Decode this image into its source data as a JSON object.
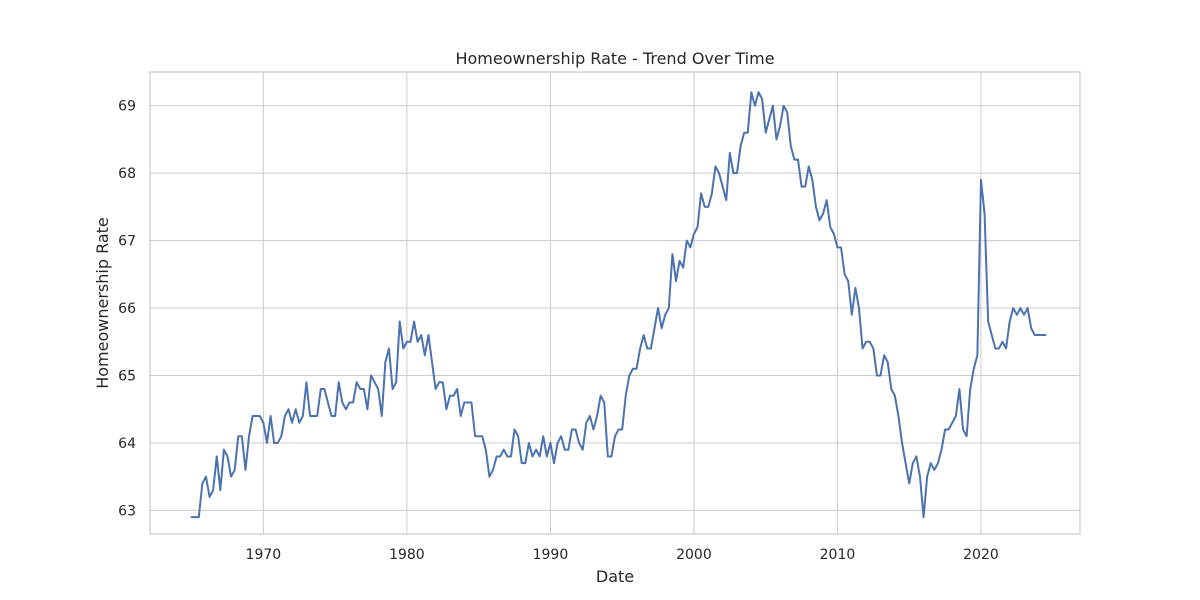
{
  "chart_data": {
    "type": "line",
    "title": "Homeownership Rate - Trend Over Time",
    "xlabel": "Date",
    "ylabel": "Homeownership Rate",
    "xlim": [
      1962.1,
      2026.9
    ],
    "ylim": [
      62.65,
      69.5
    ],
    "x_ticks": [
      1970,
      1980,
      1990,
      2000,
      2010,
      2020
    ],
    "y_ticks": [
      63,
      64,
      65,
      66,
      67,
      68,
      69
    ],
    "grid": true,
    "line_color": "#4c72b0",
    "series": [
      {
        "x": [
          1965.0,
          1965.25,
          1965.5,
          1965.75,
          1966.0,
          1966.25,
          1966.5,
          1966.75,
          1967.0,
          1967.25,
          1967.5,
          1967.75,
          1968.0,
          1968.25,
          1968.5,
          1968.75,
          1969.0,
          1969.25,
          1969.5,
          1969.75,
          1970.0,
          1970.25,
          1970.5,
          1970.75,
          1971.0,
          1971.25,
          1971.5,
          1971.75,
          1972.0,
          1972.25,
          1972.5,
          1972.75,
          1973.0,
          1973.25,
          1973.5,
          1973.75,
          1974.0,
          1974.25,
          1974.5,
          1974.75,
          1975.0,
          1975.25,
          1975.5,
          1975.75,
          1976.0,
          1976.25,
          1976.5,
          1976.75,
          1977.0,
          1977.25,
          1977.5,
          1977.75,
          1978.0,
          1978.25,
          1978.5,
          1978.75,
          1979.0,
          1979.25,
          1979.5,
          1979.75,
          1980.0,
          1980.25,
          1980.5,
          1980.75,
          1981.0,
          1981.25,
          1981.5,
          1981.75,
          1982.0,
          1982.25,
          1982.5,
          1982.75,
          1983.0,
          1983.25,
          1983.5,
          1983.75,
          1984.0,
          1984.25,
          1984.5,
          1984.75,
          1985.0,
          1985.25,
          1985.5,
          1985.75,
          1986.0,
          1986.25,
          1986.5,
          1986.75,
          1987.0,
          1987.25,
          1987.5,
          1987.75,
          1988.0,
          1988.25,
          1988.5,
          1988.75,
          1989.0,
          1989.25,
          1989.5,
          1989.75,
          1990.0,
          1990.25,
          1990.5,
          1990.75,
          1991.0,
          1991.25,
          1991.5,
          1991.75,
          1992.0,
          1992.25,
          1992.5,
          1992.75,
          1993.0,
          1993.25,
          1993.5,
          1993.75,
          1994.0,
          1994.25,
          1994.5,
          1994.75,
          1995.0,
          1995.25,
          1995.5,
          1995.75,
          1996.0,
          1996.25,
          1996.5,
          1996.75,
          1997.0,
          1997.25,
          1997.5,
          1997.75,
          1998.0,
          1998.25,
          1998.5,
          1998.75,
          1999.0,
          1999.25,
          1999.5,
          1999.75,
          2000.0,
          2000.25,
          2000.5,
          2000.75,
          2001.0,
          2001.25,
          2001.5,
          2001.75,
          2002.0,
          2002.25,
          2002.5,
          2002.75,
          2003.0,
          2003.25,
          2003.5,
          2003.75,
          2004.0,
          2004.25,
          2004.5,
          2004.75,
          2005.0,
          2005.25,
          2005.5,
          2005.75,
          2006.0,
          2006.25,
          2006.5,
          2006.75,
          2007.0,
          2007.25,
          2007.5,
          2007.75,
          2008.0,
          2008.25,
          2008.5,
          2008.75,
          2009.0,
          2009.25,
          2009.5,
          2009.75,
          2010.0,
          2010.25,
          2010.5,
          2010.75,
          2011.0,
          2011.25,
          2011.5,
          2011.75,
          2012.0,
          2012.25,
          2012.5,
          2012.75,
          2013.0,
          2013.25,
          2013.5,
          2013.75,
          2014.0,
          2014.25,
          2014.5,
          2014.75,
          2015.0,
          2015.25,
          2015.5,
          2015.75,
          2016.0,
          2016.25,
          2016.5,
          2016.75,
          2017.0,
          2017.25,
          2017.5,
          2017.75,
          2018.0,
          2018.25,
          2018.5,
          2018.75,
          2019.0,
          2019.25,
          2019.5,
          2019.75,
          2020.0,
          2020.25,
          2020.5,
          2020.75,
          2021.0,
          2021.25,
          2021.5,
          2021.75,
          2022.0,
          2022.25,
          2022.5,
          2022.75,
          2023.0,
          2023.25,
          2023.5,
          2023.75,
          2024.0,
          2024.25,
          2024.5
        ],
        "values": [
          62.9,
          62.9,
          62.9,
          63.4,
          63.5,
          63.2,
          63.3,
          63.8,
          63.3,
          63.9,
          63.8,
          63.5,
          63.6,
          64.1,
          64.1,
          63.6,
          64.1,
          64.4,
          64.4,
          64.4,
          64.3,
          64.0,
          64.4,
          64.0,
          64.0,
          64.1,
          64.4,
          64.5,
          64.3,
          64.5,
          64.3,
          64.4,
          64.9,
          64.4,
          64.4,
          64.4,
          64.8,
          64.8,
          64.6,
          64.4,
          64.4,
          64.9,
          64.6,
          64.5,
          64.6,
          64.6,
          64.9,
          64.8,
          64.8,
          64.5,
          65.0,
          64.9,
          64.8,
          64.4,
          65.2,
          65.4,
          64.8,
          64.9,
          65.8,
          65.4,
          65.5,
          65.5,
          65.8,
          65.5,
          65.6,
          65.3,
          65.6,
          65.2,
          64.8,
          64.9,
          64.9,
          64.5,
          64.7,
          64.7,
          64.8,
          64.4,
          64.6,
          64.6,
          64.6,
          64.1,
          64.1,
          64.1,
          63.9,
          63.5,
          63.6,
          63.8,
          63.8,
          63.9,
          63.8,
          63.8,
          64.2,
          64.1,
          63.7,
          63.7,
          64.0,
          63.8,
          63.9,
          63.8,
          64.1,
          63.8,
          64.0,
          63.7,
          64.0,
          64.1,
          63.9,
          63.9,
          64.2,
          64.2,
          64.0,
          63.9,
          64.3,
          64.4,
          64.2,
          64.4,
          64.7,
          64.6,
          63.8,
          63.8,
          64.1,
          64.2,
          64.2,
          64.7,
          65.0,
          65.1,
          65.1,
          65.4,
          65.6,
          65.4,
          65.4,
          65.7,
          66.0,
          65.7,
          65.9,
          66.0,
          66.8,
          66.4,
          66.7,
          66.6,
          67.0,
          66.9,
          67.1,
          67.2,
          67.7,
          67.5,
          67.5,
          67.7,
          68.1,
          68.0,
          67.8,
          67.6,
          68.3,
          68.0,
          68.0,
          68.4,
          68.6,
          68.6,
          69.2,
          69.0,
          69.2,
          69.1,
          68.6,
          68.8,
          69.0,
          68.5,
          68.7,
          69.0,
          68.9,
          68.4,
          68.2,
          68.2,
          67.8,
          67.8,
          68.1,
          67.9,
          67.5,
          67.3,
          67.4,
          67.6,
          67.2,
          67.1,
          66.9,
          66.9,
          66.5,
          66.4,
          65.9,
          66.3,
          66.0,
          65.4,
          65.5,
          65.5,
          65.4,
          65.0,
          65.0,
          65.3,
          65.2,
          64.8,
          64.7,
          64.4,
          64.0,
          63.7,
          63.4,
          63.7,
          63.8,
          63.5,
          62.9,
          63.5,
          63.7,
          63.6,
          63.7,
          63.9,
          64.2,
          64.2,
          64.3,
          64.4,
          64.8,
          64.2,
          64.1,
          64.8,
          65.1,
          65.3,
          67.9,
          67.4,
          65.8,
          65.6,
          65.4,
          65.4,
          65.5,
          65.4,
          65.8,
          66.0,
          65.9,
          66.0,
          65.9,
          66.0,
          65.7,
          65.6,
          65.6,
          65.6,
          65.6
        ]
      }
    ]
  }
}
